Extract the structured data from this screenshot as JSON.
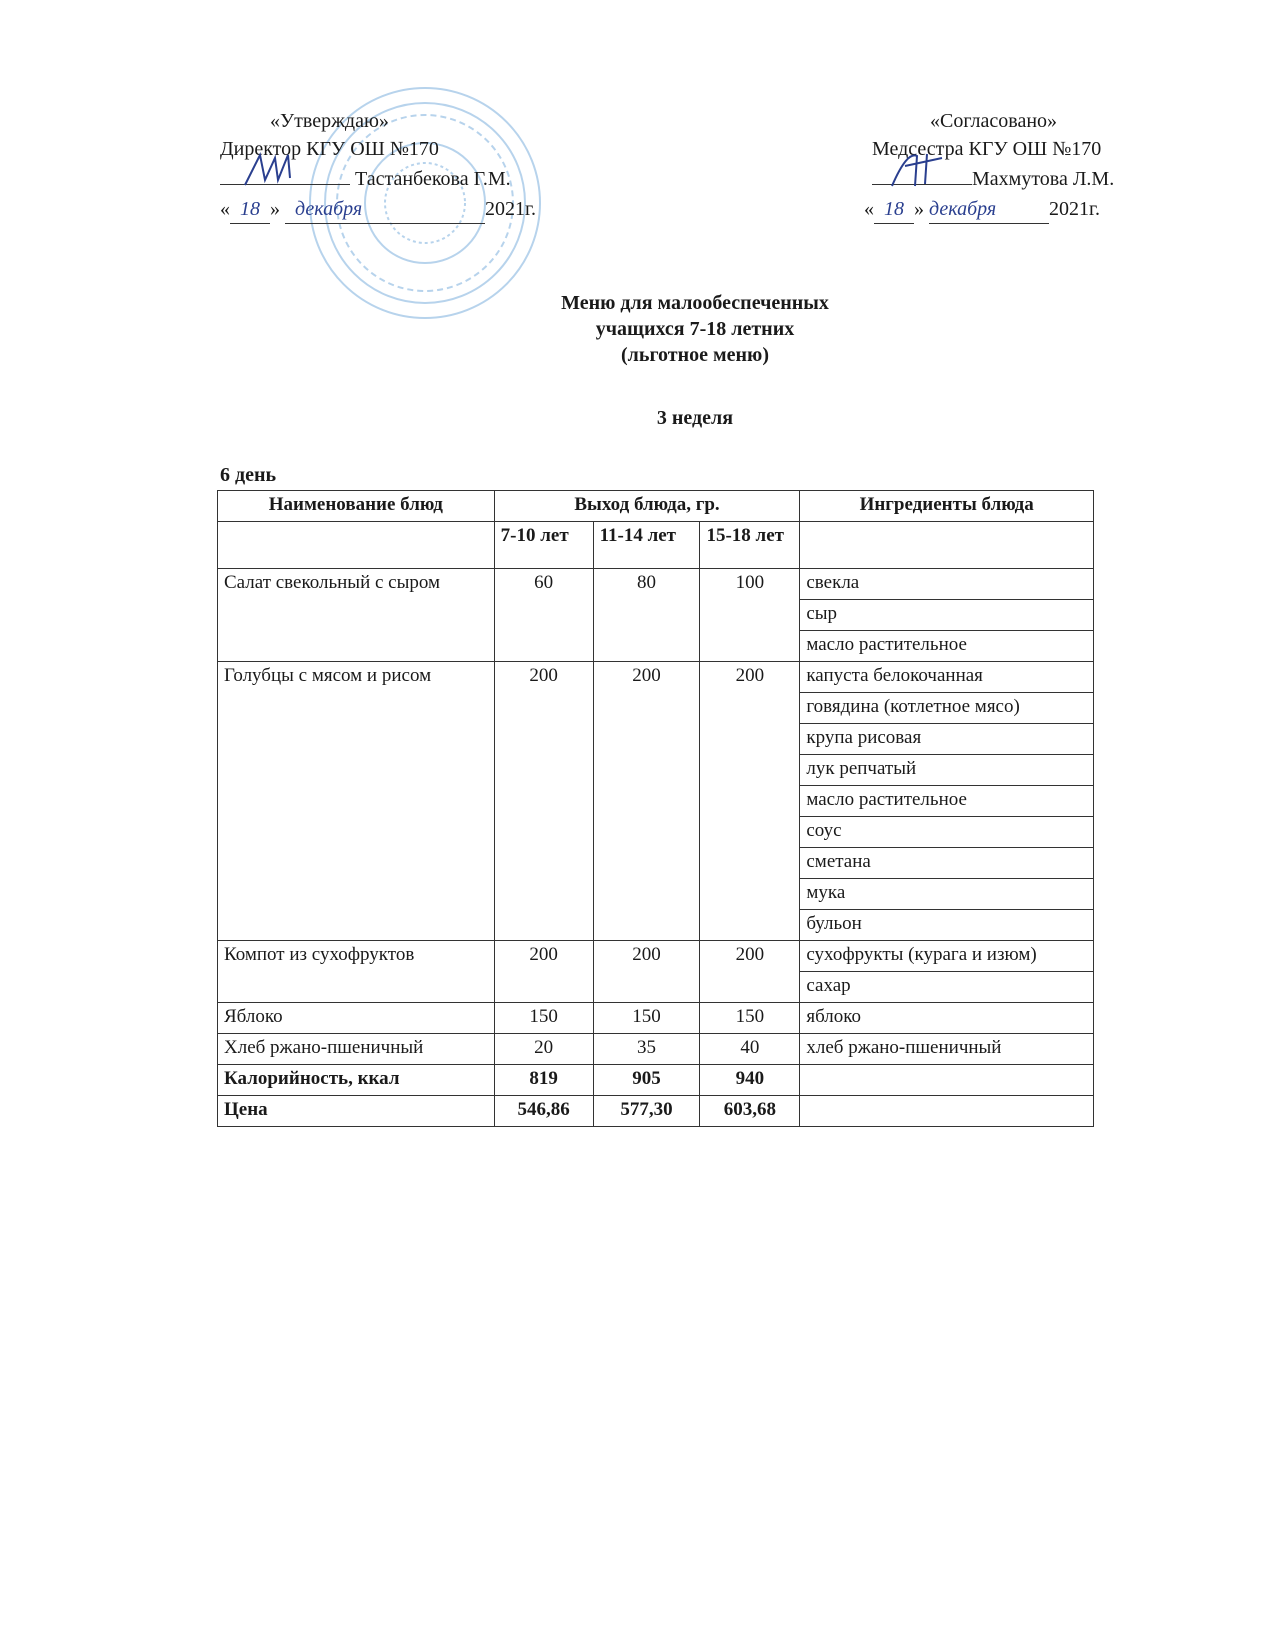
{
  "approval_left": {
    "label": "«Утверждаю»",
    "position": "Директор КГУ ОШ №170",
    "name": "Тастанбекова Г.М.",
    "date_day": "18",
    "date_month": "декабря",
    "date_year": "2021г."
  },
  "approval_right": {
    "label": "«Согласовано»",
    "position": "Медсестра КГУ ОШ №170",
    "name": "Махмутова Л.М.",
    "date_day": "18",
    "date_month": "декабря",
    "date_year": "2021г."
  },
  "title": {
    "line1": "Меню для малообеспеченных",
    "line2": "учащихся 7-18 летних",
    "line3": "(льготное меню)"
  },
  "week": "3 неделя",
  "day": "6 день",
  "table": {
    "headers": {
      "name": "Наименование блюд",
      "yield": "Выход блюда, гр.",
      "ingredients": "Ингредиенты блюда",
      "age1": "7-10 лет",
      "age2": "11-14 лет",
      "age3": "15-18 лет"
    },
    "dishes": [
      {
        "name": "Салат свекольный с сыром",
        "values": [
          "60",
          "80",
          "100"
        ],
        "ingredients": [
          "свекла",
          "сыр",
          "масло растительное"
        ]
      },
      {
        "name": "Голубцы с мясом и рисом",
        "values": [
          "200",
          "200",
          "200"
        ],
        "ingredients": [
          "капуста белокочанная",
          "говядина (котлетное мясо)",
          "крупа рисовая",
          "лук репчатый",
          "масло растительное",
          "соус",
          "сметана",
          "мука",
          "бульон"
        ]
      },
      {
        "name": "Компот из сухофруктов",
        "values": [
          "200",
          "200",
          "200"
        ],
        "ingredients": [
          "сухофрукты (курага и изюм)",
          "сахар"
        ]
      },
      {
        "name": "Яблоко",
        "values": [
          "150",
          "150",
          "150"
        ],
        "ingredients": [
          "яблоко"
        ]
      },
      {
        "name": "Хлеб ржано-пшеничный",
        "values": [
          "20",
          "35",
          "40"
        ],
        "ingredients": [
          "хлеб ржано-пшеничный"
        ]
      }
    ],
    "totals": [
      {
        "name": "Калорийность, ккал",
        "values": [
          "819",
          "905",
          "940"
        ]
      },
      {
        "name": "Цена",
        "values": [
          "546,86",
          "577,30",
          "603,68"
        ]
      }
    ]
  },
  "colors": {
    "stamp": "#9fc4e4",
    "signature": "#2a3f8f"
  }
}
